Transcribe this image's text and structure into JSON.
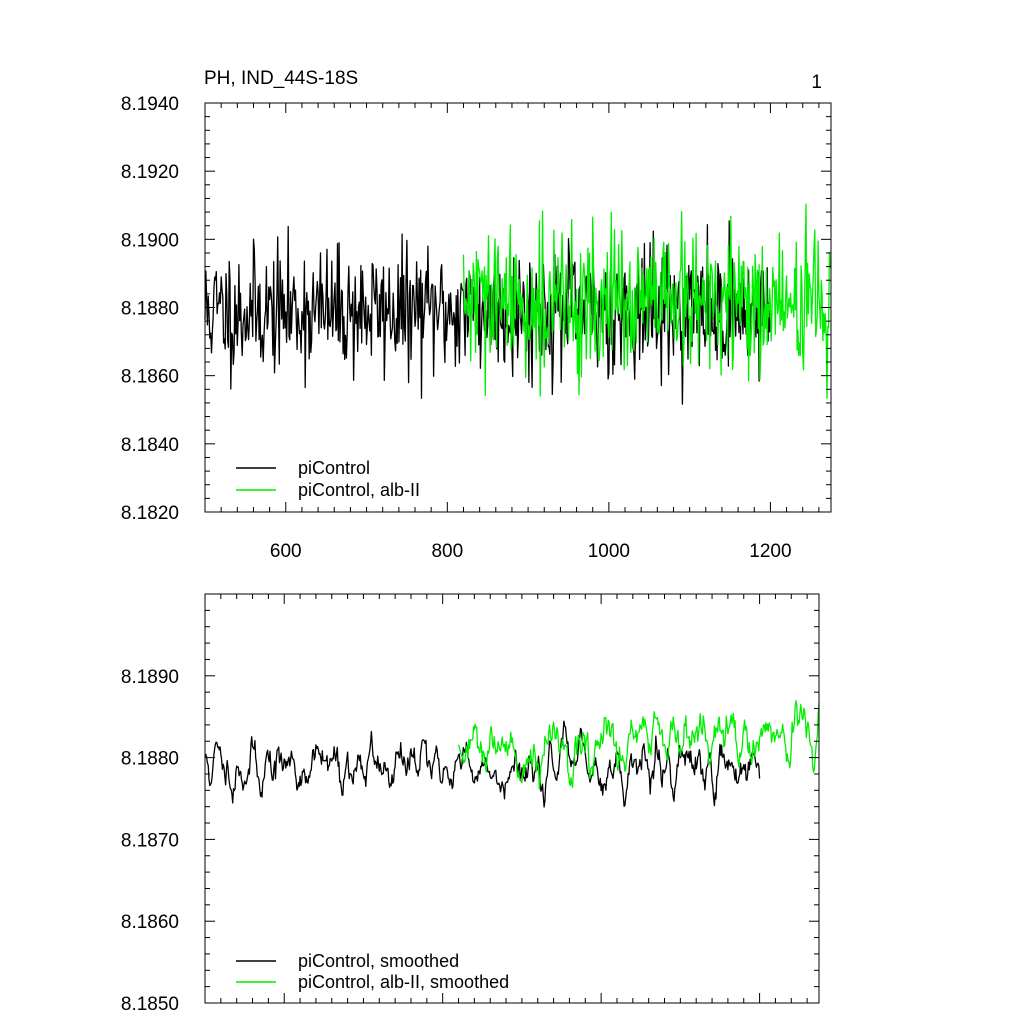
{
  "colors": {
    "background": "#ffffff",
    "piControl": "#000000",
    "albII": "#00ee00"
  },
  "chart_data": [
    {
      "type": "line",
      "title": "PH, IND_44S-18S",
      "corner_label": "1",
      "xlim": [
        500,
        1275
      ],
      "ylim": [
        8.182,
        8.194
      ],
      "xticks": [
        600,
        800,
        1000,
        1200
      ],
      "xtick_labels": [
        "600",
        "800",
        "1000",
        "1200"
      ],
      "yticks": [
        8.182,
        8.184,
        8.186,
        8.188,
        8.19,
        8.192,
        8.194
      ],
      "ytick_labels": [
        "8.1820",
        "8.1840",
        "8.1860",
        "8.1880",
        "8.1900",
        "8.1920",
        "8.1940"
      ],
      "legend_position": "bottom-left",
      "series": [
        {
          "name": "piControl",
          "color": "#000000",
          "x_start": 500,
          "x_end": 1200,
          "mean": 8.1879,
          "amplitude": 0.0022,
          "seed": 11
        },
        {
          "name": "piControl, alb-II",
          "color": "#00ee00",
          "x_start": 820,
          "x_end": 1275,
          "mean": 8.1881,
          "amplitude": 0.0025,
          "seed": 29
        }
      ]
    },
    {
      "type": "line",
      "title": "",
      "xlim": [
        500,
        1275
      ],
      "ylim": [
        8.185,
        8.19
      ],
      "xticks": [
        600,
        800,
        1000,
        1200
      ],
      "yticks": [
        8.185,
        8.186,
        8.187,
        8.188,
        8.189
      ],
      "ytick_labels": [
        "8.1850",
        "8.1860",
        "8.1870",
        "8.1880",
        "8.1890"
      ],
      "legend_position": "bottom-left",
      "series": [
        {
          "name": "piControl, smoothed",
          "color": "#000000",
          "x_start": 500,
          "x_end": 1200,
          "mean": 8.1879,
          "amplitude": 0.0009,
          "seed": 11
        },
        {
          "name": "piControl, alb-II, smoothed",
          "color": "#00ee00",
          "x_start": 820,
          "x_end": 1275,
          "mean": 8.188,
          "amplitude": 0.001,
          "seed": 29
        }
      ]
    }
  ]
}
